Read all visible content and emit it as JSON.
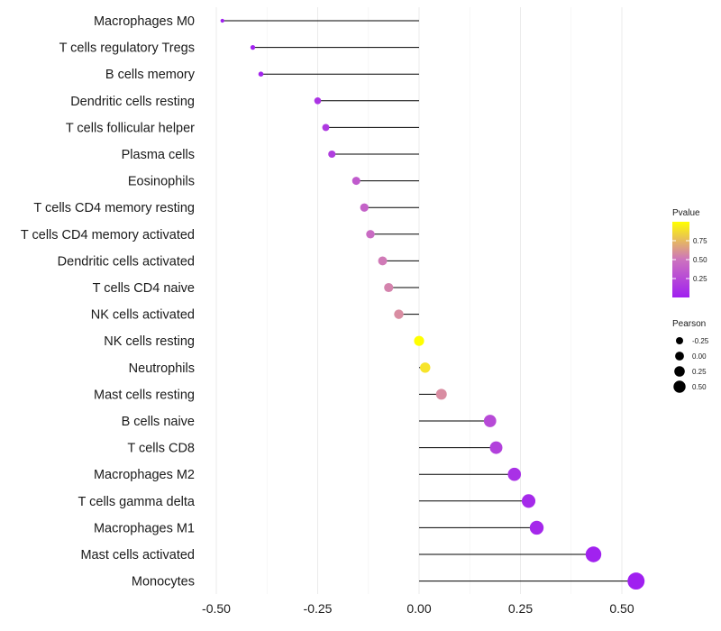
{
  "chart_data": {
    "type": "lollipop",
    "title": "",
    "xlabel": "",
    "ylabel": "",
    "xlim": [
      -0.5,
      0.55
    ],
    "x_ticks": [
      {
        "value": -0.5,
        "label": "-0.50"
      },
      {
        "value": -0.25,
        "label": "-0.25"
      },
      {
        "value": 0,
        "label": "0.00"
      },
      {
        "value": 0.25,
        "label": "0.25"
      },
      {
        "value": 0.5,
        "label": "0.50"
      }
    ],
    "grid": true,
    "categories": [
      "Macrophages M0",
      "T cells regulatory  Tregs",
      "B cells memory",
      "Dendritic cells resting",
      "T cells follicular helper",
      "Plasma cells",
      "Eosinophils",
      "T cells CD4 memory resting",
      "T cells CD4 memory activated",
      "Dendritic cells activated",
      "T cells CD4 naive",
      "NK cells activated",
      "NK cells resting",
      "Neutrophils",
      "Mast cells resting",
      "B cells naive",
      "T cells CD8",
      "Macrophages M2",
      "T cells gamma delta",
      "Macrophages M1",
      "Mast cells activated",
      "Monocytes"
    ],
    "pearson": [
      -0.485,
      -0.41,
      -0.39,
      -0.25,
      -0.23,
      -0.215,
      -0.155,
      -0.135,
      -0.12,
      -0.09,
      -0.075,
      -0.05,
      0.0,
      0.015,
      0.055,
      0.175,
      0.19,
      0.235,
      0.27,
      0.29,
      0.43,
      0.535
    ],
    "pvalue": [
      0.0,
      0.01,
      0.03,
      0.12,
      0.15,
      0.18,
      0.35,
      0.4,
      0.45,
      0.55,
      0.62,
      0.7,
      1.0,
      0.95,
      0.7,
      0.25,
      0.2,
      0.1,
      0.06,
      0.05,
      0.01,
      0.001
    ],
    "legend": {
      "position": "right",
      "color_title": "Pvalue",
      "color_ticks": [
        {
          "value": 0.75,
          "label": "0.75"
        },
        {
          "value": 0.5,
          "label": "0.50"
        },
        {
          "value": 0.25,
          "label": "0.25"
        }
      ],
      "color_range": [
        0.0,
        1.0
      ],
      "color_low": "#a020f0",
      "color_high": "#ffff00",
      "size_title": "Pearson",
      "size_items": [
        {
          "value": -0.25,
          "label": "-0.25"
        },
        {
          "value": 0.0,
          "label": "0.00"
        },
        {
          "value": 0.25,
          "label": "0.25"
        },
        {
          "value": 0.5,
          "label": "0.50"
        }
      ]
    }
  }
}
